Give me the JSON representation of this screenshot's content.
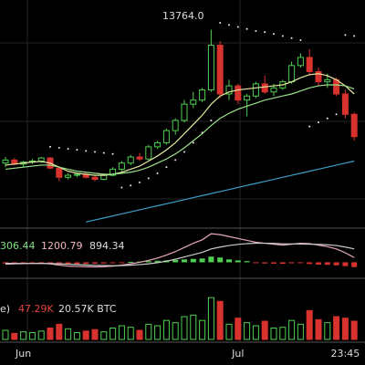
{
  "chart_data": {
    "type": "candlestick",
    "annotation": "13764.0",
    "categories": [
      null,
      null,
      "Jun",
      null,
      null,
      null,
      null,
      null,
      null,
      null,
      null,
      null,
      null,
      null,
      null,
      null,
      null,
      null,
      null,
      null,
      null,
      null,
      null,
      null,
      null,
      null,
      "Jul",
      null,
      null,
      null,
      null,
      null,
      null,
      null,
      null,
      null,
      null,
      null,
      "23:45",
      null
    ],
    "ohlc": [
      [
        7200,
        7500,
        7000,
        7350
      ],
      [
        7350,
        7450,
        7100,
        7150
      ],
      [
        7150,
        7300,
        7000,
        7250
      ],
      [
        7250,
        7400,
        7150,
        7300
      ],
      [
        7300,
        7500,
        7200,
        7450
      ],
      [
        7450,
        7500,
        6900,
        6950
      ],
      [
        6950,
        7050,
        6300,
        6500
      ],
      [
        6500,
        6700,
        6400,
        6600
      ],
      [
        6600,
        6700,
        6500,
        6650
      ],
      [
        6650,
        6750,
        6450,
        6500
      ],
      [
        6500,
        6600,
        6300,
        6400
      ],
      [
        6400,
        6700,
        6350,
        6600
      ],
      [
        6600,
        7000,
        6550,
        6900
      ],
      [
        6900,
        7300,
        6800,
        7200
      ],
      [
        7200,
        7600,
        7100,
        7500
      ],
      [
        7500,
        7700,
        7300,
        7400
      ],
      [
        7400,
        8100,
        7350,
        8000
      ],
      [
        8000,
        8300,
        7900,
        8200
      ],
      [
        8200,
        8900,
        8100,
        8800
      ],
      [
        8800,
        9400,
        8600,
        9300
      ],
      [
        9300,
        10300,
        9200,
        10100
      ],
      [
        10100,
        10700,
        9900,
        10300
      ],
      [
        10300,
        10900,
        10200,
        10800
      ],
      [
        10800,
        13764,
        10700,
        13000
      ],
      [
        13000,
        13200,
        10400,
        10600
      ],
      [
        10600,
        11300,
        10300,
        11000
      ],
      [
        11000,
        11100,
        10100,
        10300
      ],
      [
        10300,
        10600,
        9500,
        10500
      ],
      [
        10500,
        11200,
        10400,
        11100
      ],
      [
        11100,
        11500,
        10600,
        10700
      ],
      [
        10700,
        11100,
        10500,
        10900
      ],
      [
        10900,
        11300,
        10800,
        11200
      ],
      [
        11200,
        12200,
        11100,
        12000
      ],
      [
        12000,
        12600,
        11900,
        12400
      ],
      [
        12400,
        12800,
        11500,
        11700
      ],
      [
        11700,
        11900,
        11000,
        11200
      ],
      [
        11200,
        11600,
        10900,
        11300
      ],
      [
        11300,
        11400,
        10500,
        10600
      ],
      [
        10600,
        10800,
        9400,
        9600
      ],
      [
        9600,
        9700,
        8300,
        8500
      ]
    ],
    "up_color": "#4fcf4f",
    "down_color": "#d8322e",
    "ylim": [
      4000,
      15000
    ],
    "series": [
      {
        "color": "#e6e8a0",
        "values": [
          7100,
          7150,
          7200,
          7250,
          7280,
          7200,
          7000,
          6800,
          6700,
          6650,
          6600,
          6600,
          6650,
          6750,
          6900,
          7050,
          7300,
          7550,
          7850,
          8200,
          8650,
          9100,
          9550,
          10100,
          10500,
          10700,
          10800,
          10850,
          10900,
          10950,
          11000,
          11050,
          11200,
          11400,
          11550,
          11600,
          11500,
          11300,
          11000,
          10600
        ]
      },
      {
        "color": "#9be08a",
        "values": [
          6900,
          6950,
          7000,
          7050,
          7100,
          7100,
          7000,
          6900,
          6800,
          6750,
          6700,
          6650,
          6650,
          6700,
          6750,
          6850,
          7000,
          7200,
          7400,
          7650,
          7950,
          8300,
          8650,
          9050,
          9400,
          9650,
          9850,
          10000,
          10150,
          10300,
          10400,
          10500,
          10600,
          10750,
          10900,
          11000,
          11050,
          11050,
          11000,
          10850
        ]
      },
      {
        "color": "#3aa0c8",
        "values": [
          null,
          null,
          null,
          null,
          null,
          null,
          null,
          null,
          null,
          4300,
          4400,
          4500,
          4600,
          4700,
          4800,
          4900,
          5000,
          5100,
          5200,
          5300,
          5400,
          5500,
          5600,
          5700,
          5800,
          5900,
          6000,
          6100,
          6200,
          6300,
          6400,
          6500,
          6600,
          6700,
          6800,
          6900,
          7000,
          7100,
          7200,
          7300
        ]
      }
    ],
    "sar": {
      "color": "#e8e8e8",
      "values": [
        null,
        null,
        null,
        null,
        null,
        8000,
        7950,
        7900,
        7850,
        7800,
        7750,
        7700,
        7650,
        6000,
        6100,
        6250,
        6450,
        6700,
        7000,
        7350,
        7750,
        8200,
        8700,
        9300,
        14100,
        14000,
        13900,
        13800,
        13700,
        13650,
        13550,
        13450,
        13350,
        13250,
        9000,
        9200,
        9400,
        9600,
        13500,
        13450
      ]
    },
    "macd": {
      "labels": [
        "306.44",
        "1200.79",
        "894.34"
      ],
      "ylim": [
        -600,
        1600
      ],
      "hist": [
        -60,
        -70,
        -60,
        -50,
        -40,
        -60,
        -90,
        -100,
        -90,
        -80,
        -70,
        -60,
        -40,
        -20,
        20,
        40,
        60,
        80,
        100,
        120,
        150,
        180,
        200,
        300,
        250,
        150,
        100,
        60,
        -40,
        -60,
        -70,
        -80,
        -50,
        -30,
        -90,
        -120,
        -130,
        -160,
        -200,
        -250
      ],
      "dif": {
        "color": "#e8a8b8",
        "values": [
          -100,
          -80,
          -70,
          -60,
          -50,
          -80,
          -150,
          -200,
          -220,
          -230,
          -240,
          -230,
          -200,
          -150,
          -80,
          0,
          100,
          220,
          380,
          560,
          780,
          1000,
          1180,
          1500,
          1450,
          1350,
          1250,
          1150,
          1050,
          1000,
          950,
          900,
          950,
          1000,
          980,
          900,
          820,
          700,
          500,
          250
        ]
      },
      "dea": {
        "color": "#cccccc",
        "values": [
          -50,
          -60,
          -60,
          -60,
          -60,
          -65,
          -80,
          -100,
          -120,
          -140,
          -160,
          -170,
          -180,
          -170,
          -150,
          -120,
          -80,
          -20,
          60,
          160,
          280,
          400,
          520,
          700,
          800,
          880,
          940,
          980,
          1000,
          1000,
          990,
          970,
          960,
          960,
          950,
          940,
          920,
          880,
          800,
          700
        ]
      }
    },
    "volume": {
      "labels": [
        "e)",
        "47.29K",
        "20.57K BTC"
      ],
      "ylim": [
        0,
        60000
      ],
      "values": [
        12000,
        8000,
        10000,
        9000,
        11000,
        15000,
        20000,
        14000,
        9000,
        11000,
        13000,
        10000,
        15000,
        18000,
        16000,
        12000,
        20000,
        18000,
        25000,
        22000,
        30000,
        32000,
        25000,
        55000,
        50000,
        20000,
        28000,
        22000,
        18000,
        24000,
        15000,
        16000,
        25000,
        20000,
        38000,
        26000,
        22000,
        30000,
        28000,
        24000
      ]
    }
  }
}
